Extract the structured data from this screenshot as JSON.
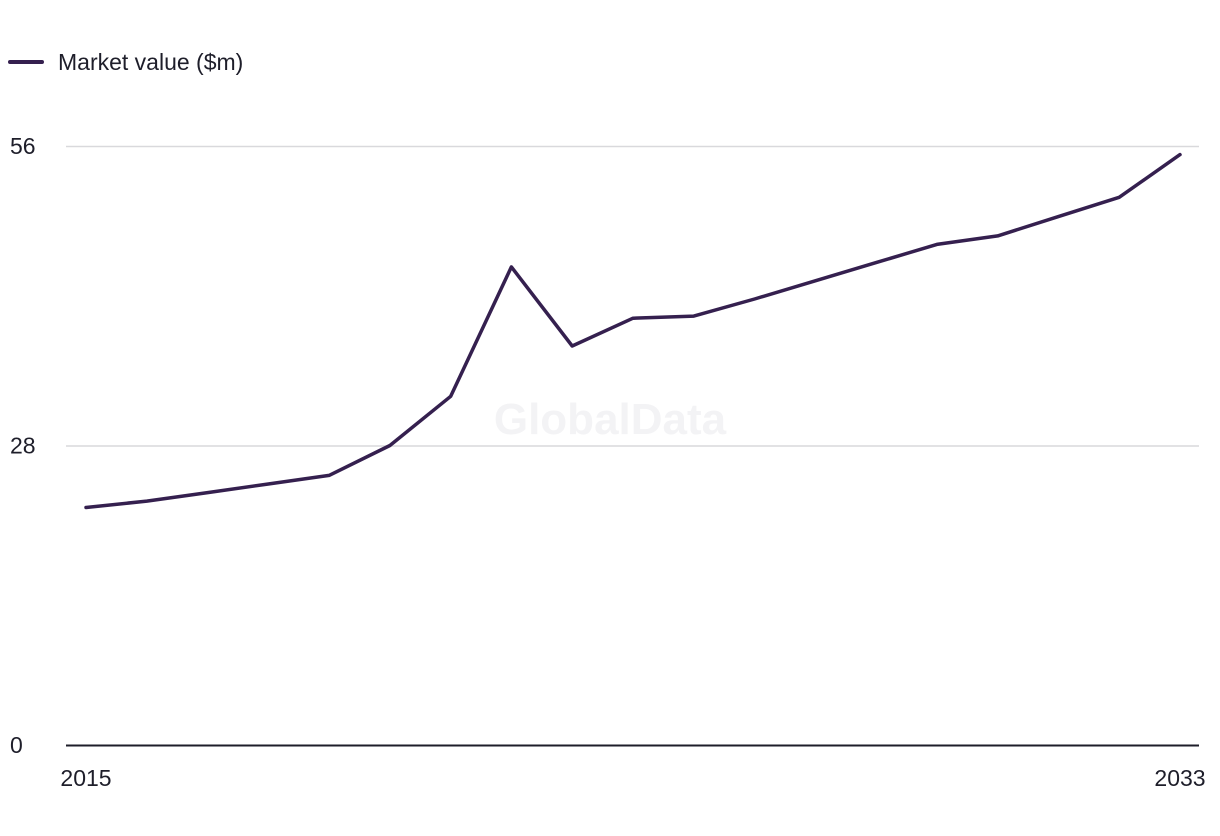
{
  "chart_data": {
    "type": "line",
    "title": "",
    "xlabel": "",
    "ylabel": "",
    "x": [
      2015,
      2016,
      2017,
      2018,
      2019,
      2020,
      2021,
      2022,
      2023,
      2024,
      2025,
      2026,
      2027,
      2028,
      2029,
      2030,
      2031,
      2032,
      2033
    ],
    "series": [
      {
        "name": "Market value ($m)",
        "color": "#35204f",
        "values": [
          22.2,
          22.8,
          23.6,
          24.4,
          25.2,
          28.0,
          32.6,
          44.7,
          37.3,
          39.9,
          40.1,
          41.7,
          43.4,
          45.1,
          46.8,
          47.6,
          49.4,
          51.2,
          55.2
        ]
      }
    ],
    "ylim": [
      0,
      56
    ],
    "yticks": [
      "0",
      "28",
      "56"
    ],
    "xtick_labels": [
      "2015",
      "2033"
    ],
    "grid": true,
    "legend_position": "top-left",
    "watermark": "GlobalData",
    "colors": {
      "grid": "#d9d9dc",
      "axis": "#1e1e2a",
      "text": "#1e1e2a",
      "watermark": "#f3f3f5"
    }
  }
}
